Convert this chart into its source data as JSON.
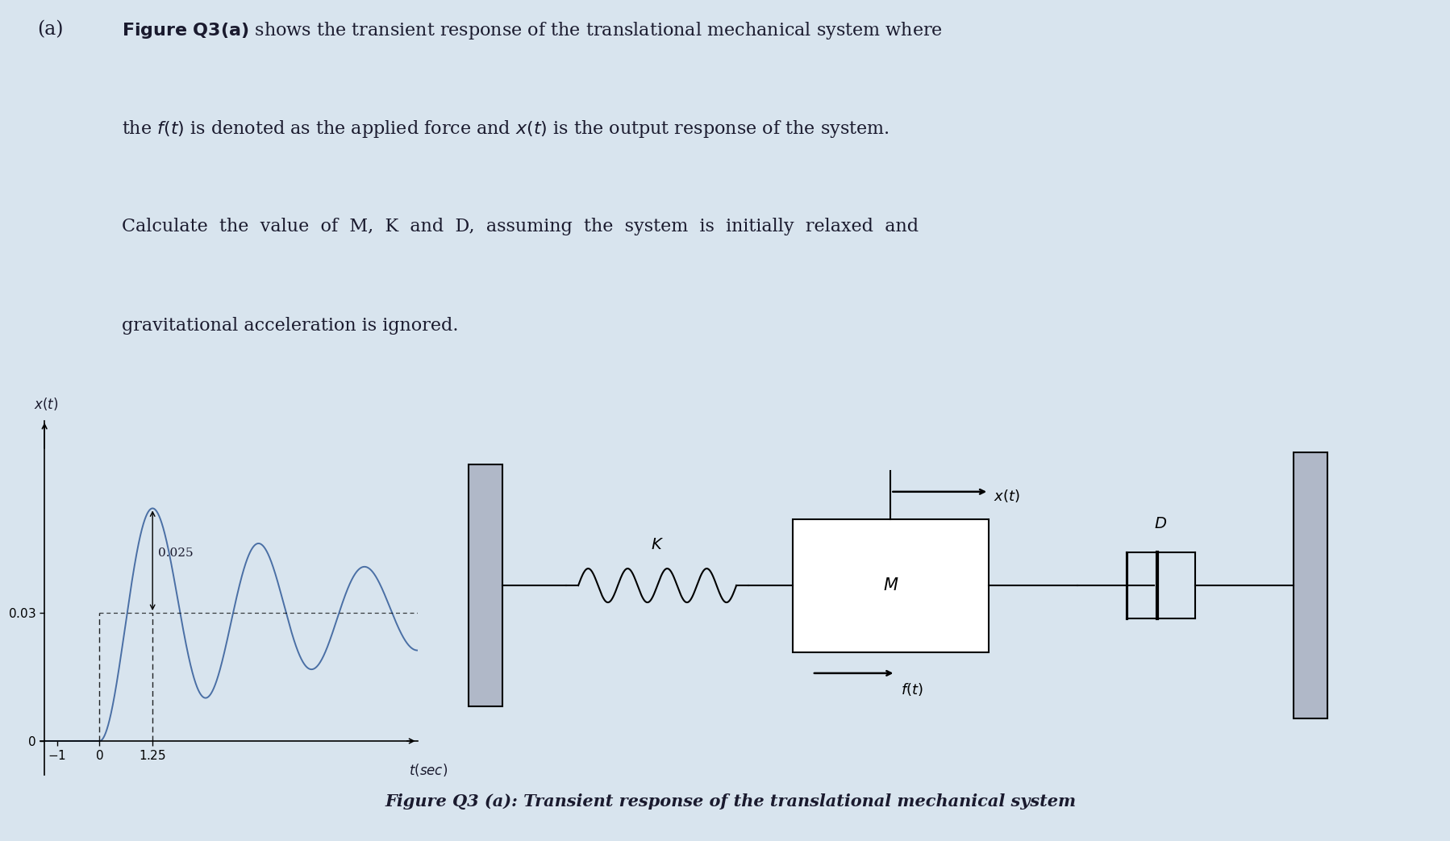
{
  "bg_color": "#d8e4ee",
  "text_color": "#1a1a2e",
  "title_a": "(a)",
  "line1": "$\\mathbf{Figure\\ Q3(a)}$ shows the transient response of the translational mechanical system where",
  "line2": "the $f(t)$ is denoted as the applied force and $x(t)$ is the output response of the system.",
  "line3": "Calculate  the  value  of  M,  K  and  D,  assuming  the  system  is  initially  relaxed  and",
  "line4": "gravitational acceleration is ignored.",
  "caption": "Figure Q3 (a): Transient response of the translational mechanical system",
  "steady_state": 0.03,
  "xlim": [
    -1.4,
    7.5
  ],
  "ylim": [
    -0.008,
    0.075
  ]
}
